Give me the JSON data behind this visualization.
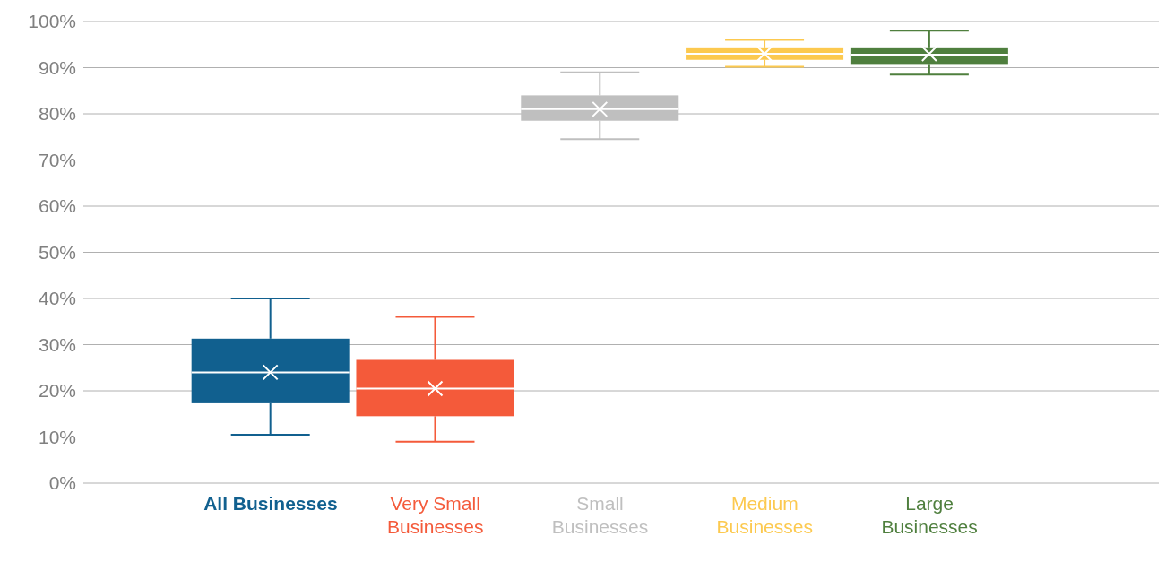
{
  "chart_data": {
    "type": "box",
    "categories": [
      "All Businesses",
      "Very Small Businesses",
      "Small Businesses",
      "Medium Businesses",
      "Large Businesses"
    ],
    "colors": [
      "#11608f",
      "#f45a3a",
      "#bfbfbf",
      "#fcc94f",
      "#4f7f3e"
    ],
    "boxes": [
      {
        "low": 10.5,
        "q1": 17.3,
        "median": 24,
        "q3": 31.3,
        "high": 40,
        "mean": 24
      },
      {
        "low": 9,
        "q1": 14.5,
        "median": 20.5,
        "q3": 26.7,
        "high": 36,
        "mean": 20.5
      },
      {
        "low": 74.5,
        "q1": 78.5,
        "median": 81,
        "q3": 84,
        "high": 89,
        "mean": 81
      },
      {
        "low": 90.2,
        "q1": 91.7,
        "median": 93,
        "q3": 94.4,
        "high": 96,
        "mean": 93
      },
      {
        "low": 88.5,
        "q1": 90.8,
        "median": 92.8,
        "q3": 94.4,
        "high": 98,
        "mean": 93
      }
    ],
    "ylim": [
      0,
      100
    ],
    "yticks": [
      {
        "value": 0,
        "label": "0%"
      },
      {
        "value": 10,
        "label": "10%"
      },
      {
        "value": 20,
        "label": "20%"
      },
      {
        "value": 30,
        "label": "30%"
      },
      {
        "value": 40,
        "label": "40%"
      },
      {
        "value": 50,
        "label": "50%"
      },
      {
        "value": 60,
        "label": "60%"
      },
      {
        "value": 70,
        "label": "70%"
      },
      {
        "value": 80,
        "label": "80%"
      },
      {
        "value": 90,
        "label": "90%"
      },
      {
        "value": 100,
        "label": "100%"
      }
    ],
    "grid": "y"
  }
}
